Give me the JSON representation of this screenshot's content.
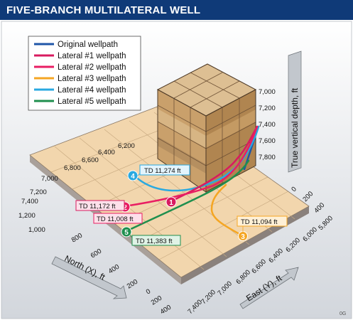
{
  "header": {
    "title": "FIVE-BRANCH MULTILATERAL WELL"
  },
  "figure_code": "0G",
  "legend": [
    {
      "label": "Original wellpath",
      "color": "#1f56a8"
    },
    {
      "label": "Lateral #1 wellpath",
      "color": "#d81b60"
    },
    {
      "label": "Lateral #2 wellpath",
      "color": "#e91e63"
    },
    {
      "label": "Lateral #3 wellpath",
      "color": "#f5a623"
    },
    {
      "label": "Lateral #4 wellpath",
      "color": "#29a9e0"
    },
    {
      "label": "Lateral #5 wellpath",
      "color": "#1f8f4e"
    }
  ],
  "axes": {
    "north_label": "North (X), ft",
    "east_label": "East (Y), ft",
    "depth_label": "True vertical depth, ft",
    "north_ticks_left": [
      "1,000",
      "1,200",
      "7,400",
      "7,200",
      "7,000",
      "6,800",
      "6,600",
      "6,400",
      "6,200"
    ],
    "north_ticks_front": [
      "800",
      "600",
      "400",
      "200",
      "0",
      "200",
      "400"
    ],
    "east_ticks_front": [
      "7,400",
      "7,200",
      "7,000",
      "6,800",
      "6,600",
      "6,400",
      "6,200",
      "6,000",
      "5,800"
    ],
    "east_ticks_right": [
      "0",
      "200",
      "400"
    ],
    "depth_ticks": [
      "7,000",
      "7,200",
      "7,400",
      "7,600",
      "7,800"
    ]
  },
  "markers": [
    {
      "id": "1",
      "color": "#d81b60"
    },
    {
      "id": "2",
      "color": "#e91e63"
    },
    {
      "id": "3",
      "color": "#f5a623"
    },
    {
      "id": "4",
      "color": "#29a9e0"
    },
    {
      "id": "5",
      "color": "#1f8f4e"
    }
  ],
  "callouts": [
    {
      "text": "TD 11,274 ft",
      "border": "#29a9e0",
      "fill": "#e3f4fc"
    },
    {
      "text": "TD 11,172 ft",
      "border": "#d81b60",
      "fill": "#fde0ea"
    },
    {
      "text": "TD 11,008 ft",
      "border": "#e91e63",
      "fill": "#fde0ea"
    },
    {
      "text": "TD 11,094 ft",
      "border": "#f5a623",
      "fill": "#fff0d6"
    },
    {
      "text": "TD 11,383 ft",
      "border": "#1f8f4e",
      "fill": "#e0f3e6"
    }
  ]
}
